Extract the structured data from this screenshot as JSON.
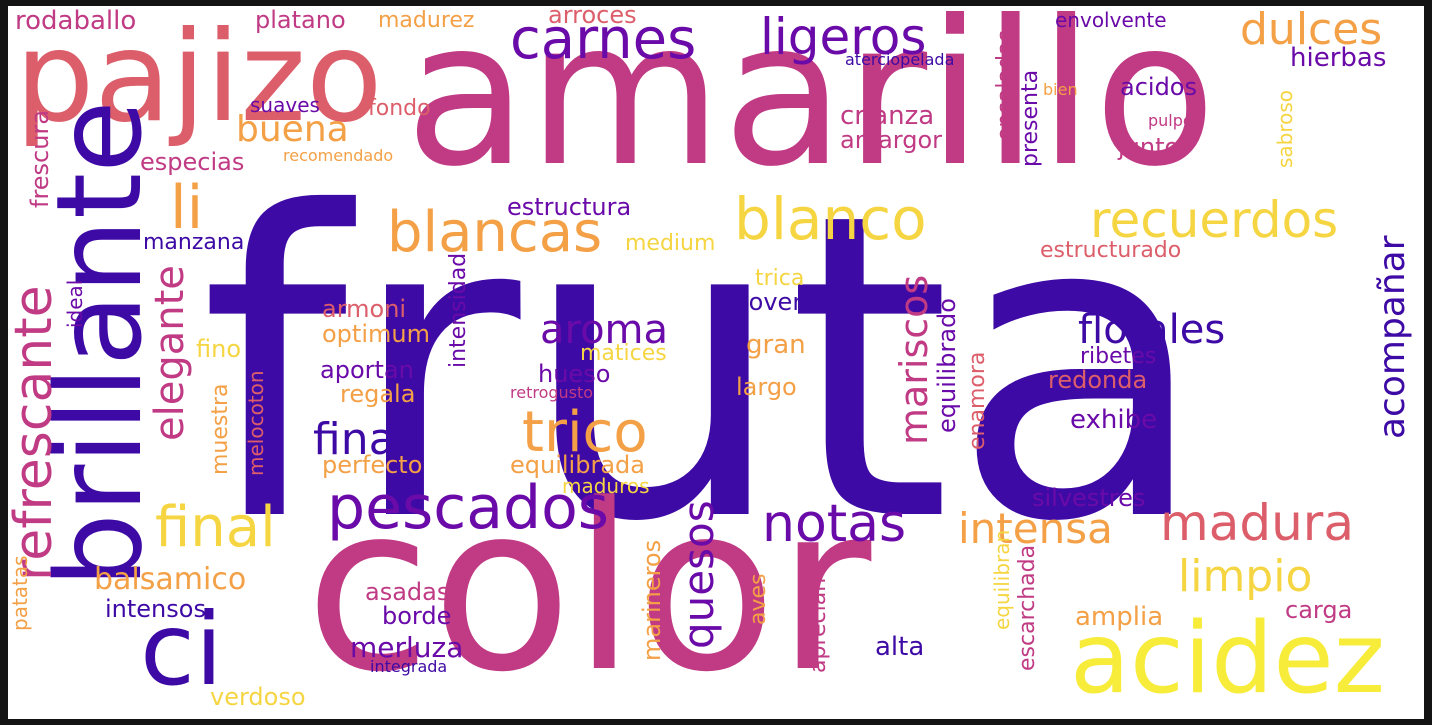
{
  "colors": {
    "c1": "#3e0aa5",
    "c2": "#6a0aa8",
    "c3": "#c03a84",
    "c4": "#dc5e6a",
    "c5": "#f3a046",
    "c6": "#f6d542",
    "c7": "#f7ec3a"
  },
  "words": [
    "fruta",
    "amarillo",
    "color",
    "pajizo",
    "brillante",
    "ci",
    "acidez",
    "carnes",
    "ligeros",
    "dulces",
    "hierbas",
    "envolvente",
    "aterciopelada",
    "rodaballo",
    "platano",
    "madurez",
    "arroces",
    "buena",
    "li",
    "blancas",
    "blanco",
    "recuerdos",
    "refrescante",
    "elegante",
    "frescura",
    "ideal",
    "especias",
    "recomendado",
    "suaves",
    "fondo",
    "crianza",
    "amargor",
    "acidos",
    "bien",
    "pulpo",
    "junto",
    "sabroso",
    "ensaladas",
    "presenta",
    "estructura",
    "manzana",
    "medium",
    "estructurado",
    "aroma",
    "florales",
    "mariscos",
    "acompañar",
    "pescados",
    "notas",
    "finas",
    "trico",
    "final",
    "madura",
    "intensa",
    "limpio",
    "quesos",
    "balsamico",
    "armoni",
    "optimum",
    "fino",
    "joven",
    "trica",
    "gran",
    "matices",
    "aportan",
    "hueso",
    "regala",
    "intensidad",
    "retrogusto",
    "largo",
    "redonda",
    "ribetes",
    "exhibe",
    "equilibrado",
    "enamora",
    "perfecto",
    "equilibrada",
    "maduros",
    "muestra",
    "melocoton",
    "silvestres",
    "asadas",
    "borde",
    "merluza",
    "integrada",
    "intensos",
    "verdoso",
    "patatas",
    "marineros",
    "aves",
    "aprecian",
    "alta",
    "amplia",
    "carga",
    "equilibran",
    "escarchada"
  ]
}
